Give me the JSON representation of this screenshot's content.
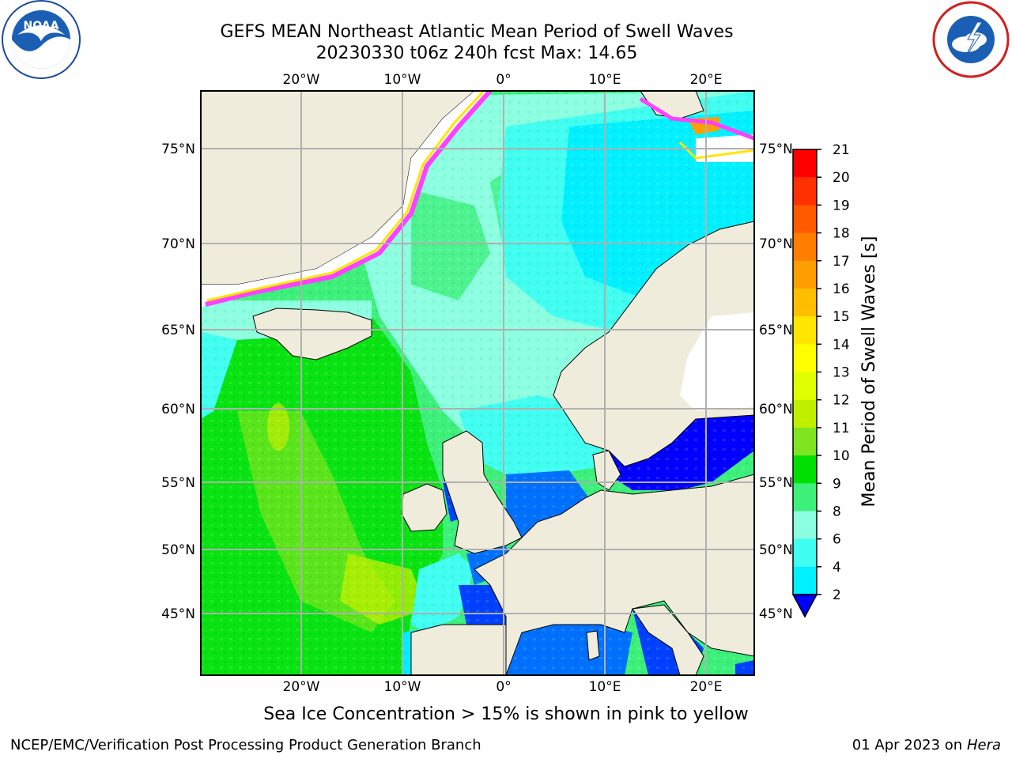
{
  "title": {
    "line1": "GEFS MEAN Northeast Atlantic Mean Period of Swell Waves",
    "line2": "20230330 t06z 240h fcst   Max: 14.65"
  },
  "caption": "Sea Ice Concentration > 15% is shown in pink to yellow",
  "footer": {
    "left": "NCEP/EMC/Verification Post Processing Product Generation Branch",
    "date": "01 Apr 2023 on ",
    "machine": "Hera"
  },
  "logos": {
    "left": "noaa-logo",
    "right": "national-weather-service-logo"
  },
  "map": {
    "lon_ticks_top": [
      "20°W",
      "10°W",
      "0°",
      "10°E",
      "20°E"
    ],
    "lon_ticks_bottom": [
      "20°W",
      "10°W",
      "0°",
      "10°E",
      "20°E"
    ],
    "lat_ticks_left": [
      "75°N",
      "70°N",
      "65°N",
      "60°N",
      "55°N",
      "50°N",
      "45°N"
    ],
    "lat_ticks_right": [
      "75°N",
      "70°N",
      "65°N",
      "60°N",
      "55°N",
      "50°N",
      "45°N"
    ],
    "colors": {
      "land": "#efecdc",
      "ice_free_land_white": "#ffffff",
      "grid": "#b0b0b0",
      "coast": "#000000"
    }
  },
  "colorbar": {
    "label": "Mean Period of Swell Waves [s]",
    "ticks": [
      "21",
      "20",
      "19",
      "18",
      "17",
      "16",
      "15",
      "14",
      "13",
      "12",
      "11",
      "10",
      "9",
      "8",
      "6",
      "4",
      "2"
    ],
    "colors": [
      "#ff0000",
      "#ff3000",
      "#ff5a00",
      "#ff7d00",
      "#ff9e00",
      "#ffbe00",
      "#ffe600",
      "#ffff00",
      "#e0ff00",
      "#c0f000",
      "#7ee520",
      "#00e000",
      "#3cf07a",
      "#8cffe0",
      "#40fff0",
      "#00f0ff",
      "#00c8ff",
      "#0070ff"
    ]
  }
}
